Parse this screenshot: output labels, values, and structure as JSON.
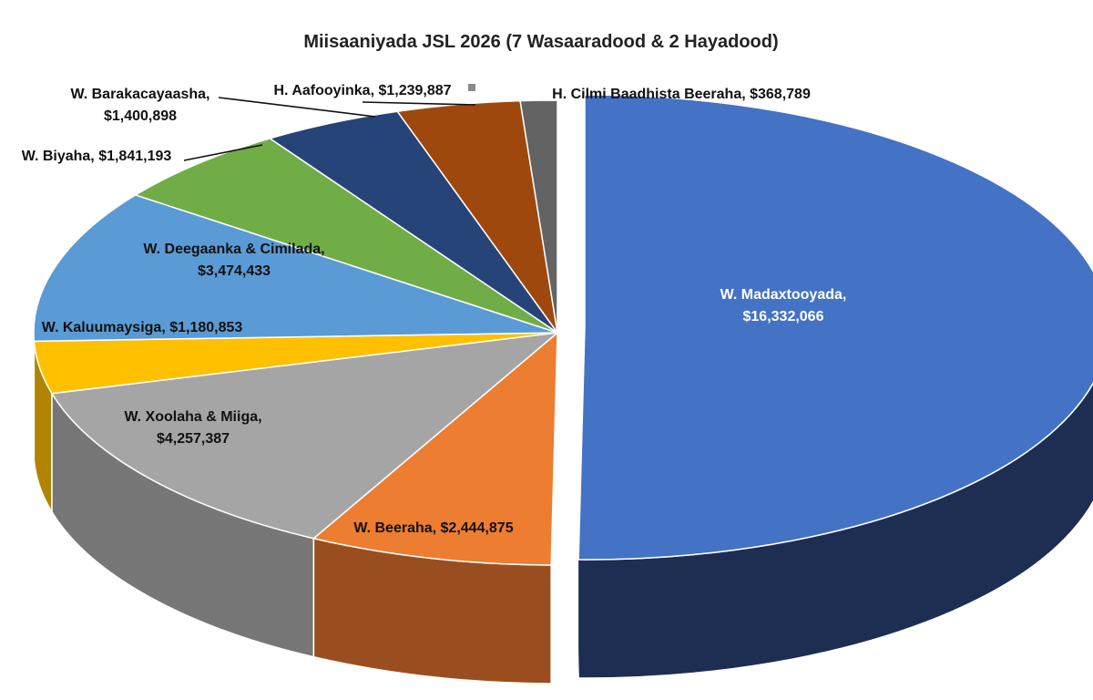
{
  "chart_data": {
    "type": "pie",
    "title": "Miisaaniyada JSL 2026 (7 Wasaaradood & 2 Hayadood)",
    "categories": [
      "W. Madaxtooyada",
      "W. Beeraha",
      "W. Xoolaha & Miiga",
      "W. Kaluumaysiga",
      "W. Deegaanka & Cimilada",
      "W. Biyaha",
      "W. Barakacayaasha",
      "H. Aafooyinka",
      "H. Cilmi Baadhista Beeraha"
    ],
    "values": [
      16332066,
      2444875,
      4257387,
      1180853,
      3474433,
      1841193,
      1400898,
      1239887,
      368789
    ],
    "slices": [
      {
        "name": "W. Madaxtooyada",
        "value": 16332066,
        "value_label": "$16,332,066",
        "label_line1": "W. Madaxtooyada,",
        "label_line2": "$16,332,066",
        "color": "#4472C4",
        "side_color": "#1E2E52",
        "text_color": "#FFFFFF"
      },
      {
        "name": "W. Beeraha",
        "value": 2444875,
        "value_label": "$2,444,875",
        "label_line1": "W. Beeraha, $2,444,875",
        "label_line2": "",
        "color": "#ED7D31",
        "side_color": "#9A4E20",
        "text_color": "#111111"
      },
      {
        "name": "W. Xoolaha & Miiga",
        "value": 4257387,
        "value_label": "$4,257,387",
        "label_line1": "W. Xoolaha & Miiga,",
        "label_line2": "$4,257,387",
        "color": "#A5A5A5",
        "side_color": "#777777",
        "text_color": "#111111"
      },
      {
        "name": "W. Kaluumaysiga",
        "value": 1180853,
        "value_label": "$1,180,853",
        "label_line1": "W. Kaluumaysiga, $1,180,853",
        "label_line2": "",
        "color": "#FFC000",
        "side_color": "#B08400",
        "text_color": "#111111"
      },
      {
        "name": "W. Deegaanka & Cimilada",
        "value": 3474433,
        "value_label": "$3,474,433",
        "label_line1": "W. Deegaanka & Cimilada,",
        "label_line2": "$3,474,433",
        "color": "#5B9BD5",
        "side_color": "#3A6A98",
        "text_color": "#111111"
      },
      {
        "name": "W. Biyaha",
        "value": 1841193,
        "value_label": "$1,841,193",
        "label_line1": "W. Biyaha, $1,841,193",
        "label_line2": "",
        "color": "#70AD47",
        "side_color": "#4A7A2E",
        "text_color": "#111111"
      },
      {
        "name": "W. Barakacayaasha",
        "value": 1400898,
        "value_label": "$1,400,898",
        "label_line1": "W. Barakacayaasha,",
        "label_line2": "$1,400,898",
        "color": "#264478",
        "side_color": "#152A4E",
        "text_color": "#111111"
      },
      {
        "name": "H. Aafooyinka",
        "value": 1239887,
        "value_label": "$1,239,887",
        "label_line1": "H. Aafooyinka, $1,239,887",
        "label_line2": "",
        "color": "#9E480E",
        "side_color": "#6A2F08",
        "text_color": "#111111"
      },
      {
        "name": "H. Cilmi Baadhista Beeraha",
        "value": 368789,
        "value_label": "$368,789",
        "label_line1": "H. Cilmi Baadhista Beeraha, $368,789",
        "label_line2": "",
        "color": "#636363",
        "side_color": "#3E3E3E",
        "text_color": "#111111"
      }
    ],
    "exploded_slice": "W. Madaxtooyada",
    "style": "3d-pie",
    "legend": "none",
    "data_labels": "category and value"
  }
}
